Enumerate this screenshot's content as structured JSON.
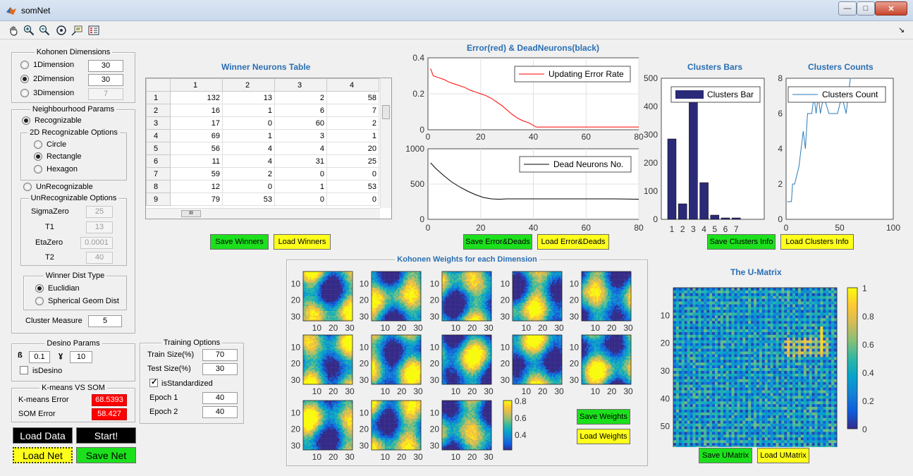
{
  "window": {
    "title": "somNet",
    "min": "—",
    "max": "□",
    "close": "✕"
  },
  "toolbar": {
    "icons": [
      "pan-icon",
      "zoom-in-icon",
      "zoom-out-icon",
      "rotate-icon",
      "data-cursor-icon",
      "insert-legend-icon"
    ],
    "dock": "↘"
  },
  "kohonen_dims": {
    "title": "Kohonen Dimensions",
    "options": [
      {
        "label": "1Dimension",
        "value": "30",
        "checked": false,
        "disabled": false
      },
      {
        "label": "2Dimension",
        "value": "30",
        "checked": true,
        "disabled": false
      },
      {
        "label": "3Dimension",
        "value": "7",
        "checked": false,
        "disabled": true
      }
    ]
  },
  "neigh": {
    "title": "Neighbourhood Params",
    "recognizable": "Recognizable",
    "opts2d_title": "2D Recognizable Options",
    "shapes": [
      "Circle",
      "Rectangle",
      "Hexagon"
    ],
    "selected": 1,
    "unrecognizable": "UnRecognizable",
    "unrec_title": "UnRecognizable Options",
    "params": [
      {
        "label": "SigmaZero",
        "value": "25"
      },
      {
        "label": "T1",
        "value": "13"
      },
      {
        "label": "EtaZero",
        "value": "0.0001"
      },
      {
        "label": "T2",
        "value": "40"
      }
    ],
    "dist_title": "Winner Dist Type",
    "dists": [
      "Euclidian",
      "Spherical Geom Dist"
    ],
    "cluster_label": "Cluster Measure",
    "cluster_value": "5"
  },
  "desino": {
    "title": "Desino Params",
    "beta_label": "ß",
    "beta": "0.1",
    "gamma_label": "ɣ",
    "gamma": "10",
    "is_label": "isDesino"
  },
  "kmeans": {
    "title": "K-means VS SOM",
    "kmeans_label": "K-means Error",
    "kmeans_value": "68.5393",
    "som_label": "SOM Error",
    "som_value": "58.427"
  },
  "buttons": {
    "load_data": "Load Data",
    "start": "Start!",
    "load_net": "Load Net",
    "save_net": "Save Net",
    "save_winners": "Save Winners",
    "load_winners": "Load Winners",
    "save_error": "Save Error&Deads",
    "load_error": "Load Error&Deads",
    "save_clusters": "Save Clusters Info",
    "load_clusters": "Load Clusters Info",
    "save_weights": "Save Weights",
    "load_weights": "Load Weights",
    "save_umatrix": "Save UMatrix",
    "load_umatrix": "Load UMatrix"
  },
  "training": {
    "title": "Training Options",
    "train_label": "Train Size(%)",
    "train": "70",
    "test_label": "Test Size(%)",
    "test": "30",
    "std_label": "isStandardized",
    "epoch1_label": "Epoch 1",
    "epoch1": "40",
    "epoch2_label": "Epoch 2",
    "epoch2": "40"
  },
  "winners": {
    "title": "Winner Neurons Table",
    "cols": [
      "1",
      "2",
      "3",
      "4"
    ],
    "rows": [
      [
        "1",
        "132",
        "13",
        "2",
        "58"
      ],
      [
        "2",
        "16",
        "1",
        "6",
        "7"
      ],
      [
        "3",
        "17",
        "0",
        "60",
        "2"
      ],
      [
        "4",
        "69",
        "1",
        "3",
        "1"
      ],
      [
        "5",
        "56",
        "4",
        "4",
        "20"
      ],
      [
        "6",
        "11",
        "4",
        "31",
        "25"
      ],
      [
        "7",
        "59",
        "2",
        "0",
        "0"
      ],
      [
        "8",
        "12",
        "0",
        "1",
        "53"
      ],
      [
        "9",
        "79",
        "53",
        "0",
        "0"
      ]
    ],
    "scroll_mark": "III"
  },
  "error_chart": {
    "title": "Error(red) & DeadNeurons(black)"
  },
  "clusters_bars": {
    "title": "Clusters Bars"
  },
  "clusters_counts": {
    "title": "Clusters Counts"
  },
  "weights": {
    "title": "Kohonen Weights for each Dimension"
  },
  "umatrix": {
    "title": "The U-Matrix"
  },
  "chart_data": [
    {
      "type": "line",
      "title": "",
      "series": [
        {
          "name": "Updating Error Rate",
          "color": "#ff0000",
          "x": [
            1,
            2,
            4,
            6,
            8,
            10,
            12,
            14,
            16,
            18,
            20,
            22,
            24,
            26,
            28,
            30,
            32,
            34,
            36,
            38,
            40,
            41,
            50,
            60,
            70,
            80
          ],
          "y": [
            0.34,
            0.3,
            0.29,
            0.28,
            0.265,
            0.255,
            0.245,
            0.235,
            0.22,
            0.21,
            0.2,
            0.19,
            0.175,
            0.155,
            0.135,
            0.11,
            0.085,
            0.065,
            0.05,
            0.04,
            0.025,
            0.015,
            0.015,
            0.015,
            0.015,
            0.015
          ]
        }
      ],
      "xlim": [
        0,
        80
      ],
      "ylim": [
        0,
        0.4
      ],
      "yticks": [
        "0",
        "0.2",
        "0.4"
      ],
      "xticks": []
    },
    {
      "type": "line",
      "title": "",
      "series": [
        {
          "name": "Dead Neurons No.",
          "color": "#000000",
          "x": [
            1,
            3,
            6,
            9,
            12,
            15,
            18,
            21,
            24,
            27,
            30,
            35,
            40,
            50,
            60,
            70,
            80
          ],
          "y": [
            800,
            720,
            620,
            530,
            460,
            400,
            350,
            310,
            290,
            285,
            290,
            290,
            290,
            290,
            290,
            290,
            285
          ]
        }
      ],
      "xlim": [
        0,
        80
      ],
      "ylim": [
        0,
        1000
      ],
      "xticks": [
        "0",
        "20",
        "40",
        "60",
        "80"
      ],
      "yticks": [
        "0",
        "500",
        "1000"
      ]
    },
    {
      "type": "bar",
      "title": "Clusters Bars",
      "legend": "Clusters Bar",
      "categories": [
        "1",
        "2",
        "3",
        "4",
        "5",
        "6",
        "7"
      ],
      "values": [
        285,
        55,
        440,
        130,
        15,
        5,
        5
      ],
      "ylim": [
        0,
        500
      ],
      "yticks": [
        "0",
        "100",
        "200",
        "300",
        "400",
        "500"
      ]
    },
    {
      "type": "line",
      "title": "Clusters Counts",
      "series": [
        {
          "name": "Clusters Count",
          "color": "#2a7ab8",
          "x": [
            1,
            5,
            6,
            8,
            12,
            14,
            16,
            18,
            20,
            22,
            24,
            26,
            28,
            30,
            32,
            35,
            40,
            44,
            48,
            52,
            56,
            60,
            62
          ],
          "y": [
            1,
            1,
            2,
            2,
            3,
            4,
            5,
            4,
            6,
            6,
            6,
            7,
            6,
            7,
            6,
            7,
            6,
            6,
            6,
            7,
            6,
            8,
            8
          ]
        }
      ],
      "xlim": [
        0,
        100
      ],
      "ylim": [
        0,
        8
      ],
      "xticks": [
        "0",
        "50",
        "100"
      ],
      "yticks": [
        "0",
        "2",
        "4",
        "6",
        "8"
      ]
    }
  ],
  "heatmap_axes": {
    "ticks": [
      "10",
      "20",
      "30"
    ],
    "colorbar": [
      "0.8",
      "0.6",
      "0.4"
    ],
    "umatrix_xticks": [
      "10",
      "20",
      "30",
      "40",
      "50"
    ],
    "umatrix_yticks": [
      "10",
      "20",
      "30",
      "40",
      "50"
    ],
    "umatrix_colorbar": [
      "1",
      "0.8",
      "0.6",
      "0.4",
      "0.2",
      "0"
    ]
  },
  "colors": {
    "parula": [
      "#352a87",
      "#0f5cdd",
      "#1481d6",
      "#06a4ca",
      "#2eb7a4",
      "#87bf77",
      "#d1bb59",
      "#fec832",
      "#f9fb0e"
    ]
  }
}
